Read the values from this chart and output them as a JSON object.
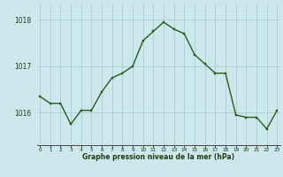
{
  "x": [
    0,
    1,
    2,
    3,
    4,
    5,
    6,
    7,
    8,
    9,
    10,
    11,
    12,
    13,
    14,
    15,
    16,
    17,
    18,
    19,
    20,
    21,
    22,
    23
  ],
  "y": [
    1016.35,
    1016.2,
    1016.2,
    1015.75,
    1016.05,
    1016.05,
    1016.45,
    1016.75,
    1016.85,
    1017.0,
    1017.55,
    1017.75,
    1017.95,
    1017.8,
    1017.7,
    1017.25,
    1017.05,
    1016.85,
    1016.85,
    1015.95,
    1015.9,
    1015.9,
    1015.65,
    1016.05
  ],
  "line_color": "#2d5a1b",
  "marker_color": "#2d5a1b",
  "bg_color": "#cce8ec",
  "grid_color": "#aacdd4",
  "xlabel": "Graphe pression niveau de la mer (hPa)",
  "ylabel_ticks": [
    1016,
    1017,
    1018
  ],
  "ylim": [
    1015.3,
    1018.35
  ],
  "xlim": [
    -0.3,
    23.3
  ],
  "tick_label_color": "#1a4010",
  "xlabel_color": "#1a4010",
  "figsize": [
    3.2,
    2.0
  ],
  "dpi": 100
}
